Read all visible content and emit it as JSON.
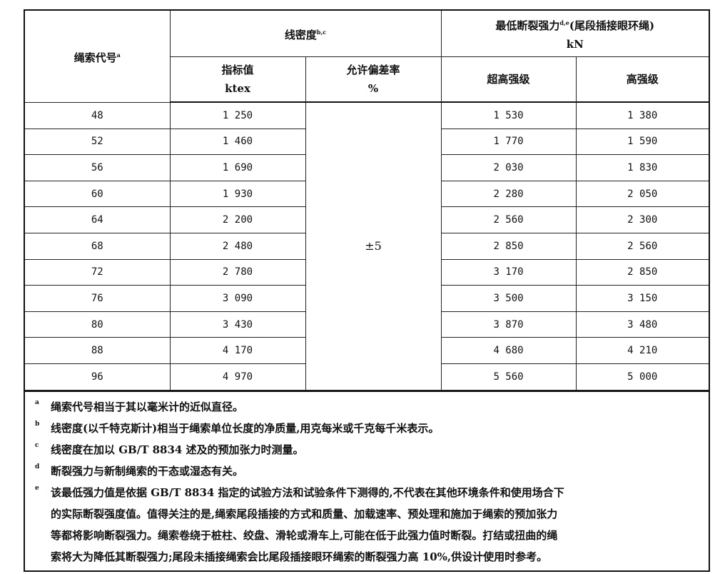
{
  "header": {
    "rope_code": "绳索代号",
    "rope_code_note": "a",
    "linear_density": "线密度",
    "linear_density_note": "b,c",
    "min_break": "最低断裂强力",
    "min_break_note": "d,e",
    "min_break_suffix": "(尾段插接眼环绳)",
    "min_break_unit": "kN",
    "nominal": "指标值",
    "nominal_unit": "ktex",
    "tolerance": "允许偏差率",
    "tolerance_unit": "%",
    "super_high": "超高强级",
    "high": "高强级"
  },
  "tolerance_value": "±5",
  "rows": [
    [
      "48",
      "1 250",
      "1 530",
      "1 380"
    ],
    [
      "52",
      "1 460",
      "1 770",
      "1 590"
    ],
    [
      "56",
      "1 690",
      "2 030",
      "1 830"
    ],
    [
      "60",
      "1 930",
      "2 280",
      "2 050"
    ],
    [
      "64",
      "2 200",
      "2 560",
      "2 300"
    ],
    [
      "68",
      "2 480",
      "2 850",
      "2 560"
    ],
    [
      "72",
      "2 780",
      "3 170",
      "2 850"
    ],
    [
      "76",
      "3 090",
      "3 500",
      "3 150"
    ],
    [
      "80",
      "3 430",
      "3 870",
      "3 480"
    ],
    [
      "88",
      "4 170",
      "4 680",
      "4 210"
    ],
    [
      "96",
      "4 970",
      "5 560",
      "5 000"
    ]
  ],
  "notes": [
    {
      "mark": "a",
      "lines": [
        "绳索代号相当于其以毫米计的近似直径。"
      ]
    },
    {
      "mark": "b",
      "lines": [
        "线密度(以千特克斯计)相当于绳索单位长度的净质量,用克每米或千克每千米表示。"
      ]
    },
    {
      "mark": "c",
      "lines": [
        "线密度在加以 GB/T 8834 述及的预加张力时测量。"
      ]
    },
    {
      "mark": "d",
      "lines": [
        "断裂强力与新制绳索的干态或湿态有关。"
      ]
    },
    {
      "mark": "e",
      "lines": [
        "该最低强力值是依据 GB/T 8834 指定的试验方法和试验条件下测得的,不代表在其他环境条件和使用场合下",
        "的实际断裂强度值。值得关注的是,绳索尾段插接的方式和质量、加载速率、预处理和施加于绳索的预加张力",
        "等都将影响断裂强力。绳索卷绕于桩柱、绞盘、滑轮或滑车上,可能在低于此强力值时断裂。打结或扭曲的绳",
        "索将大为降低其断裂强力;尾段未插接绳索会比尾段插接眼环绳索的断裂强力高 10%,供设计使用时参考。"
      ]
    }
  ]
}
